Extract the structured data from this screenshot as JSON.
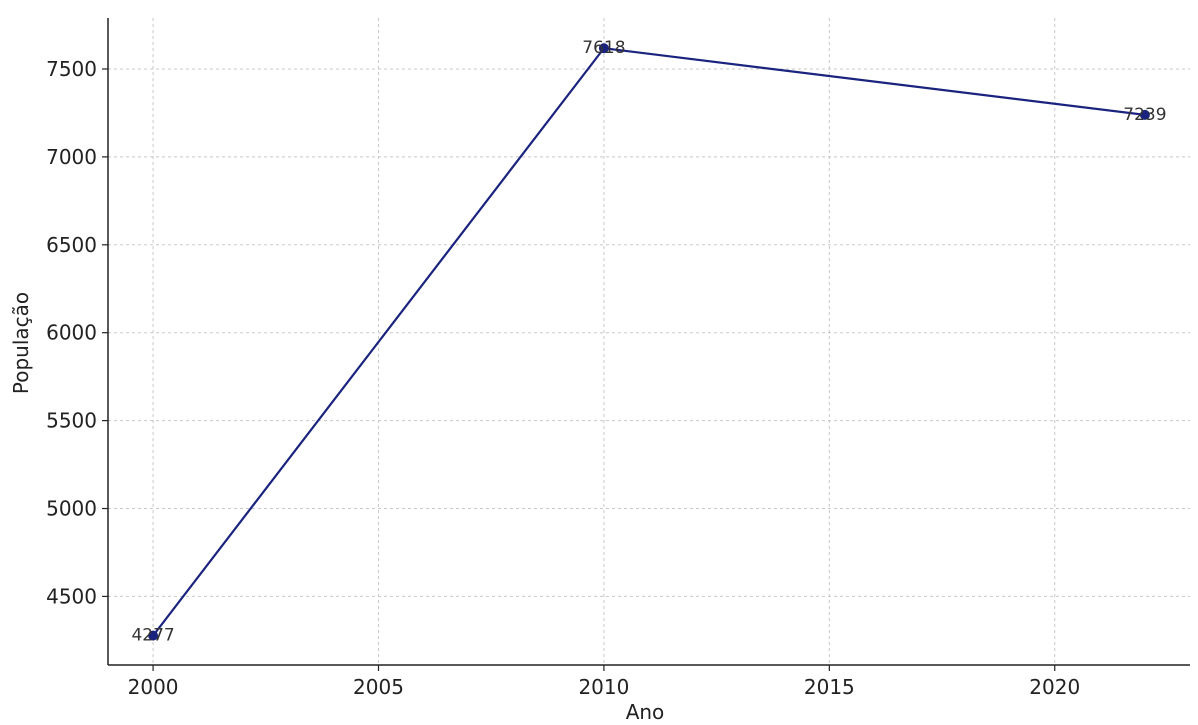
{
  "chart_data": {
    "type": "line",
    "title": "",
    "xlabel": "Ano",
    "ylabel": "População",
    "x": [
      2000,
      2010,
      2022
    ],
    "series": [
      {
        "values": [
          4277,
          7618,
          7239
        ],
        "data_labels": [
          "4277",
          "7618",
          "7239"
        ],
        "color": "#1a237e",
        "marker": "circle"
      }
    ],
    "xticks": [
      2000,
      2005,
      2010,
      2015,
      2020
    ],
    "xtick_labels": [
      "2000",
      "2005",
      "2010",
      "2015",
      "2020"
    ],
    "yticks": [
      4500,
      5000,
      5500,
      6000,
      6500,
      7000,
      7500
    ],
    "ytick_labels": [
      "4500",
      "5000",
      "5500",
      "6000",
      "6500",
      "7000",
      "7500"
    ],
    "xlim": [
      1999,
      2023
    ],
    "ylim": [
      4110,
      7790
    ],
    "grid": true,
    "legend": "none"
  }
}
